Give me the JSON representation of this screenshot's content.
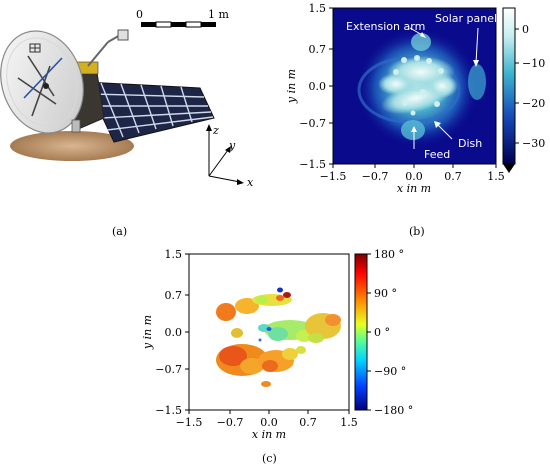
{
  "captions": [
    "(a)",
    "(b)",
    "(c)"
  ],
  "panel_a": {
    "scale_bar": {
      "start": "0",
      "end": "1 m"
    },
    "axes": {
      "x": "x",
      "y": "y",
      "z": "z"
    }
  },
  "panel_b": {
    "annotations": {
      "extension_arm": "Extension arm",
      "solar_panel": "Solar panel",
      "dish": "Dish",
      "feed": "Feed"
    },
    "xlabel": "x in m",
    "ylabel": "y in m",
    "xticks": [
      "−1.5",
      "−0.7",
      "0.0",
      "0.7",
      "1.5"
    ],
    "yticks": [
      "1.5",
      "0.7",
      "0.0",
      "−0.7",
      "−1.5"
    ],
    "colorbar_ticks": [
      "0",
      "−10",
      "−20",
      "−30"
    ],
    "colors": {
      "background": "#0a0a8c",
      "peak": "#d8f0f0"
    }
  },
  "panel_c": {
    "xlabel": "x in m",
    "ylabel": "y in m",
    "xticks": [
      "−1.5",
      "−0.7",
      "0.0",
      "0.7",
      "1.5"
    ],
    "yticks": [
      "1.5",
      "0.7",
      "0.0",
      "−0.7",
      "−1.5"
    ],
    "colorbar_ticks": [
      "180 °",
      "90 °",
      "0 °",
      "−90 °",
      "−180 °"
    ],
    "colors": {
      "low": "#00007f",
      "high": "#7f0000"
    }
  },
  "chart_data": [
    {
      "type": "heatmap",
      "xlabel": "x in m",
      "ylabel": "y in m",
      "xlim": [
        -1.5,
        1.5
      ],
      "ylim": [
        -1.5,
        1.5
      ],
      "colorbar_range": [
        -35,
        4
      ],
      "colorbar_ticks": [
        0,
        -10,
        -20,
        -30
      ],
      "annotations": [
        "Extension arm",
        "Solar panel",
        "Dish",
        "Feed"
      ]
    },
    {
      "type": "scatter",
      "xlabel": "x in m",
      "ylabel": "y in m",
      "xlim": [
        -1.5,
        1.5
      ],
      "ylim": [
        -1.5,
        1.5
      ],
      "colorbar_range": [
        -180,
        180
      ],
      "colorbar_ticks": [
        180,
        90,
        0,
        -90,
        -180
      ]
    }
  ]
}
